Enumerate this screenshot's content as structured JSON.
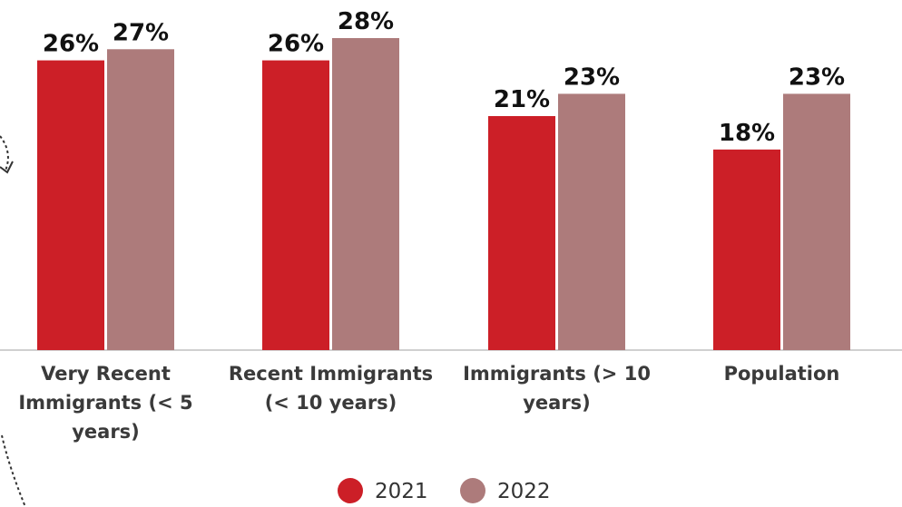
{
  "chart_data": {
    "type": "bar",
    "categories": [
      [
        "Very Recent",
        "Immigrants (< 5",
        "years)"
      ],
      [
        "Recent Immigrants",
        "(< 10 years)"
      ],
      [
        "Immigrants (> 10",
        "years)"
      ],
      [
        "Population"
      ]
    ],
    "series": [
      {
        "name": "2021",
        "values": [
          26,
          26,
          21,
          18
        ],
        "labels": [
          "26%",
          "26%",
          "21%",
          "18%"
        ],
        "color": "#cc1f27"
      },
      {
        "name": "2022",
        "values": [
          27,
          28,
          23,
          23
        ],
        "labels": [
          "27%",
          "28%",
          "23%",
          "23%"
        ],
        "color": "#ad7b7b"
      }
    ],
    "ylim": [
      0,
      28
    ],
    "grid": false,
    "legend": "bottom",
    "title": "",
    "xlabel": "",
    "ylabel": ""
  },
  "colors": {
    "axis": "#d0d0d0",
    "decoration": "#333333"
  }
}
